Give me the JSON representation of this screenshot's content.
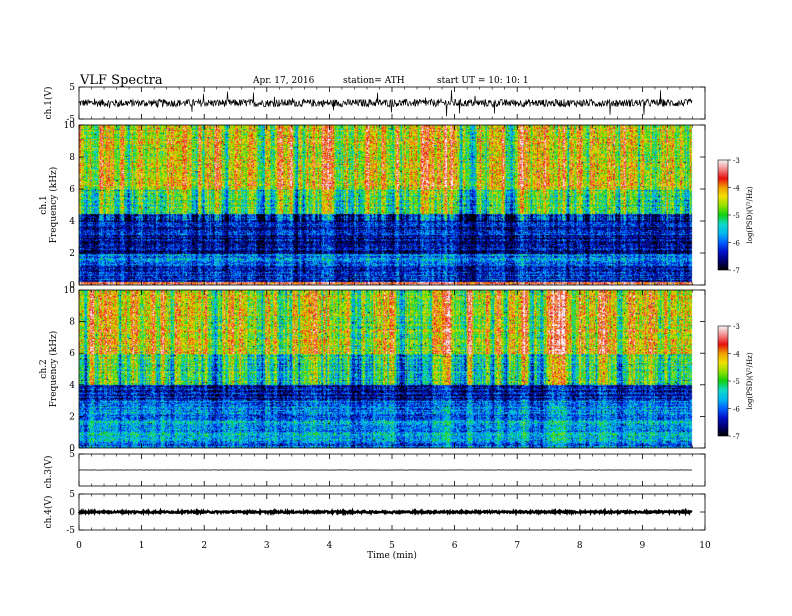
{
  "header": {
    "title": "VLF  Spectra",
    "date": "Apr. 17, 2016",
    "station": "station= ATH",
    "start": "start  UT  =    10: 10: 1"
  },
  "colorbar": {
    "label": "log(PSD)(V²/Hz)",
    "ticks": [
      "-3",
      "-4",
      "-5",
      "-6",
      "-7"
    ],
    "colors": [
      "#f7f7f7",
      "#f08a8a",
      "#e81010",
      "#f0a000",
      "#f0e000",
      "#8fe000",
      "#10d010",
      "#10d8c8",
      "#00b8f0",
      "#0060ff",
      "#0010c8",
      "#000070",
      "#000000"
    ]
  },
  "chart_data": [
    {
      "type": "line",
      "name": "ch1-waveform",
      "ylabel": "ch.1(V)",
      "ylim": [
        -5,
        5
      ],
      "yticks": [
        "5",
        "-5"
      ],
      "xlim": [
        0,
        10
      ],
      "note_values": "dense noisy waveform, roughly between -1.5 and 1.5 V with sparse spikes",
      "amplitude": 1.2
    },
    {
      "type": "heatmap",
      "name": "ch1-spectrogram",
      "ylabel": "ch.1\nFrequency (kHz)",
      "ylim": [
        0,
        10
      ],
      "yticks": [
        "0",
        "2",
        "4",
        "6",
        "8",
        "10"
      ],
      "xlim": [
        0,
        10
      ],
      "zlim": [
        -7,
        -3
      ],
      "zlabel": "log(PSD)(V²/Hz)",
      "bands": [
        {
          "from": 0.0,
          "to": 0.2,
          "value": -3.5
        },
        {
          "from": 0.2,
          "to": 1.2,
          "value": -6.2
        },
        {
          "from": 1.2,
          "to": 2.0,
          "value": -5.8
        },
        {
          "from": 2.0,
          "to": 3.0,
          "value": -6.5
        },
        {
          "from": 3.0,
          "to": 4.5,
          "value": -6.3
        },
        {
          "from": 4.5,
          "to": 6.0,
          "value": -5.0
        },
        {
          "from": 6.0,
          "to": 10.0,
          "value": -4.3
        }
      ]
    },
    {
      "type": "heatmap",
      "name": "ch2-spectrogram",
      "ylabel": "ch.2\nFrequency (kHz)",
      "ylim": [
        0,
        10
      ],
      "yticks": [
        "0",
        "2",
        "4",
        "6",
        "8",
        "10"
      ],
      "xlim": [
        0,
        10
      ],
      "zlim": [
        -7,
        -3
      ],
      "zlabel": "log(PSD)(V²/Hz)",
      "bands": [
        {
          "from": 0.0,
          "to": 0.5,
          "value": -6.0
        },
        {
          "from": 0.5,
          "to": 1.8,
          "value": -5.6
        },
        {
          "from": 1.8,
          "to": 3.0,
          "value": -5.9
        },
        {
          "from": 3.0,
          "to": 4.0,
          "value": -6.4
        },
        {
          "from": 4.0,
          "to": 6.0,
          "value": -5.1
        },
        {
          "from": 6.0,
          "to": 10.0,
          "value": -4.4
        }
      ]
    },
    {
      "type": "line",
      "name": "ch3-waveform",
      "ylabel": "ch.3(V)",
      "ylim": [
        -5,
        5
      ],
      "yticks": [
        "5"
      ],
      "xlim": [
        0,
        10
      ],
      "note_values": "near-flat trace at about 0 V",
      "amplitude": 0.05
    },
    {
      "type": "line",
      "name": "ch4-waveform",
      "ylabel": "ch.4(V)",
      "ylim": [
        -5,
        5
      ],
      "yticks": [
        "5",
        "0",
        "-5"
      ],
      "xlim": [
        0,
        10
      ],
      "note_values": "thick flat band at about 0 V",
      "amplitude": 0.25
    }
  ],
  "xaxis": {
    "label": "Time  (min)",
    "ticks": [
      "0",
      "1",
      "2",
      "3",
      "4",
      "5",
      "6",
      "7",
      "8",
      "9",
      "10"
    ],
    "data_end": 9.8
  }
}
